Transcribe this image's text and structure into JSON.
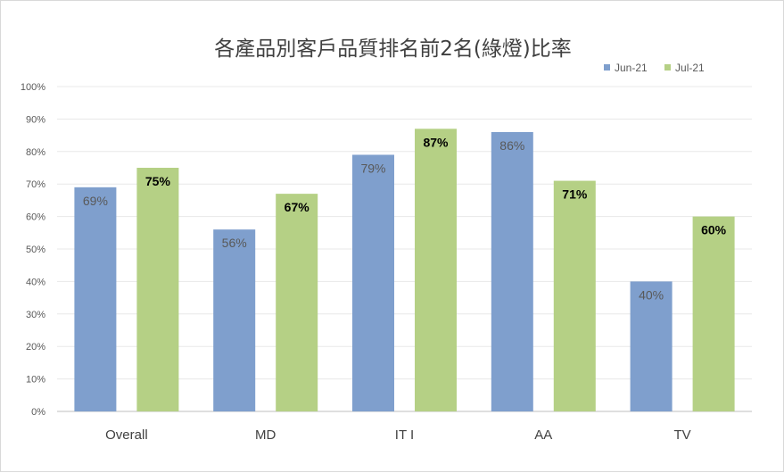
{
  "chart_data": {
    "type": "bar",
    "title": "各產品別客戶品質排名前2名(綠燈)比率",
    "categories": [
      "Overall",
      "MD",
      "IT I",
      "AA",
      "TV"
    ],
    "series": [
      {
        "name": "Jun-21",
        "values": [
          69,
          56,
          79,
          86,
          40
        ],
        "labels": [
          "69%",
          "56%",
          "79%",
          "86%",
          "40%"
        ],
        "color": "#7f9fcd"
      },
      {
        "name": "Jul-21",
        "values": [
          75,
          67,
          87,
          71,
          60
        ],
        "labels": [
          "75%",
          "67%",
          "87%",
          "71%",
          "60%"
        ],
        "color": "#b5d085"
      }
    ],
    "ylim": [
      0,
      100
    ],
    "yticks": [
      "0%",
      "10%",
      "20%",
      "30%",
      "40%",
      "50%",
      "60%",
      "70%",
      "80%",
      "90%",
      "100%"
    ],
    "grid": true,
    "legend_position": "top-right"
  }
}
